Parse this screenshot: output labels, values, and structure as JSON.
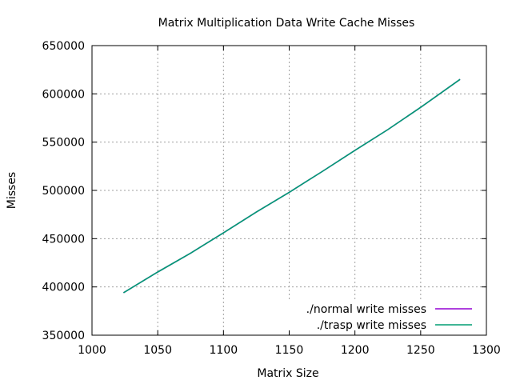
{
  "chart_data": {
    "type": "line",
    "title": "Matrix Multiplication Data Write Cache Misses",
    "xlabel": "Matrix Size",
    "ylabel": "Misses",
    "xlim": [
      1000,
      1300
    ],
    "ylim": [
      350000,
      650000
    ],
    "xticks": [
      "1000",
      "1050",
      "1100",
      "1150",
      "1200",
      "1250",
      "1300"
    ],
    "yticks": [
      "350000",
      "400000",
      "450000",
      "500000",
      "550000",
      "600000",
      "650000"
    ],
    "grid": true,
    "legend_position": "bottom-right",
    "series": [
      {
        "name": "./normal write misses",
        "color": "#9400d3",
        "x": [
          1024,
          1050,
          1075,
          1100,
          1125,
          1150,
          1175,
          1200,
          1225,
          1250,
          1280
        ],
        "y": [
          394000,
          415500,
          435000,
          456000,
          477500,
          498000,
          519500,
          541500,
          563000,
          586000,
          615000
        ]
      },
      {
        "name": "./trasp write misses",
        "color": "#009e73",
        "x": [
          1024,
          1050,
          1075,
          1100,
          1125,
          1150,
          1175,
          1200,
          1225,
          1250,
          1280
        ],
        "y": [
          394000,
          415500,
          435000,
          456000,
          477500,
          498000,
          519500,
          541500,
          563000,
          586000,
          615000
        ]
      }
    ]
  }
}
